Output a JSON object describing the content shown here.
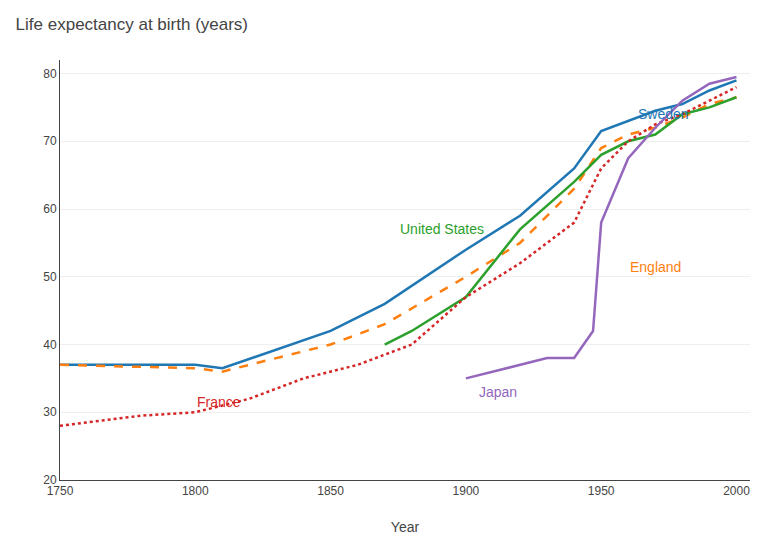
{
  "chart_data": {
    "type": "line",
    "title": "Life expectancy at birth (years)",
    "xlabel": "Year",
    "xlim": [
      1750,
      2005
    ],
    "ylim": [
      20,
      82
    ],
    "xticks": [
      1750,
      1800,
      1850,
      1900,
      1950,
      2000
    ],
    "yticks": [
      20,
      30,
      40,
      50,
      60,
      70,
      80
    ],
    "grid": "y",
    "series": [
      {
        "name": "Sweden",
        "line_style": "solid",
        "x": [
          1750,
          1800,
          1810,
          1850,
          1870,
          1900,
          1920,
          1940,
          1950,
          1960,
          1970,
          1980,
          1990,
          2000
        ],
        "values": [
          37.0,
          37.0,
          36.5,
          42,
          46,
          54,
          59,
          66,
          71.5,
          73,
          74.5,
          75.5,
          77.5,
          79.0
        ]
      },
      {
        "name": "England",
        "line_style": "dashed",
        "x": [
          1750,
          1800,
          1810,
          1850,
          1870,
          1900,
          1920,
          1940,
          1950,
          1960,
          1970,
          1980,
          1990,
          2000
        ],
        "values": [
          37.0,
          36.5,
          36.0,
          40,
          43,
          50,
          55,
          63,
          69,
          71,
          72,
          73.5,
          75.5,
          76.5
        ]
      },
      {
        "name": "United States",
        "line_style": "solid",
        "x": [
          1870,
          1880,
          1900,
          1920,
          1940,
          1950,
          1960,
          1970,
          1980,
          1990,
          2000
        ],
        "values": [
          40,
          42,
          47,
          57,
          64,
          68,
          70,
          71,
          74,
          75,
          76.5
        ]
      },
      {
        "name": "France",
        "line_style": "dotted",
        "x": [
          1750,
          1780,
          1800,
          1820,
          1840,
          1860,
          1880,
          1900,
          1920,
          1940,
          1950,
          1960,
          1970,
          1980,
          1990,
          2000
        ],
        "values": [
          28.0,
          29.5,
          30.0,
          32,
          35,
          37,
          40,
          47,
          52,
          58,
          66,
          70,
          72.5,
          74,
          76,
          78
        ]
      },
      {
        "name": "Japan",
        "line_style": "solid",
        "x": [
          1900,
          1910,
          1920,
          1930,
          1940,
          1947,
          1950,
          1960,
          1970,
          1980,
          1990,
          2000
        ],
        "values": [
          35,
          36,
          37,
          38,
          38,
          42,
          58,
          67.5,
          72,
          76,
          78.5,
          79.5
        ]
      }
    ],
    "annotations": [
      {
        "text": "Sweden",
        "x": 1963,
        "y": 74.0
      },
      {
        "text": "England",
        "x": 1960,
        "y": 51.5
      },
      {
        "text": "United States",
        "x": 1875,
        "y": 57.0
      },
      {
        "text": "France",
        "x": 1800,
        "y": 31.5
      },
      {
        "text": "Japan",
        "x": 1904,
        "y": 33.0
      }
    ]
  }
}
